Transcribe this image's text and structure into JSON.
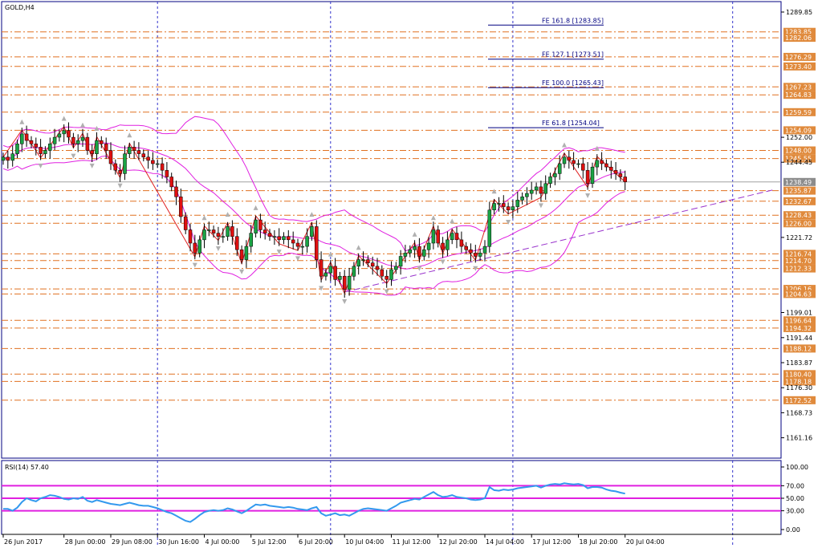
{
  "chart_data": {
    "type": "candlestick",
    "symbol_label": "GOLD,H4",
    "price_axis": {
      "min": 1155,
      "max": 1293,
      "ticks": [
        "1289.85",
        "1252.00",
        "1244.45",
        "1221.72",
        "1199.01",
        "1191.44",
        "1183.87",
        "1176.30",
        "1168.73",
        "1161.16"
      ]
    },
    "time_labels": [
      {
        "label": "26 Jun 2017",
        "i": 0
      },
      {
        "label": "28 Jun 00:00",
        "i": 13
      },
      {
        "label": "29 Jun 08:00",
        "i": 23
      },
      {
        "label": "30 Jun 16:00",
        "i": 33
      },
      {
        "label": "4 Jul 00:00",
        "i": 43
      },
      {
        "label": "5 Jul 12:00",
        "i": 53
      },
      {
        "label": "6 Jul 20:00",
        "i": 63
      },
      {
        "label": "10 Jul 04:00",
        "i": 73
      },
      {
        "label": "11 Jul 12:00",
        "i": 83
      },
      {
        "label": "12 Jul 20:00",
        "i": 93
      },
      {
        "label": "14 Jul 04:00",
        "i": 103
      },
      {
        "label": "17 Jul 12:00",
        "i": 113
      },
      {
        "label": "18 Jul 20:00",
        "i": 123
      },
      {
        "label": "20 Jul 04:00",
        "i": 133
      }
    ],
    "period_separators_i": [
      33,
      70,
      109,
      156
    ],
    "current_price": {
      "value": 1238.49,
      "label": "1238.49"
    },
    "horizontal_levels": [
      {
        "value": 1283.85,
        "label": "1283.85"
      },
      {
        "value": 1282.06,
        "label": "1282.06"
      },
      {
        "value": 1276.29,
        "label": "1276.29"
      },
      {
        "value": 1273.4,
        "label": "1273.40"
      },
      {
        "value": 1267.23,
        "label": "1267.23"
      },
      {
        "value": 1264.83,
        "label": "1264.83"
      },
      {
        "value": 1259.59,
        "label": "1259.59"
      },
      {
        "value": 1254.09,
        "label": "1254.09"
      },
      {
        "value": 1248.0,
        "label": "1248.00"
      },
      {
        "value": 1245.55,
        "label": "1245.55"
      },
      {
        "value": 1235.87,
        "label": "1235.87"
      },
      {
        "value": 1232.67,
        "label": "1232.67"
      },
      {
        "value": 1228.43,
        "label": "1228.43"
      },
      {
        "value": 1226.0,
        "label": "1226.00"
      },
      {
        "value": 1216.74,
        "label": "1216.74"
      },
      {
        "value": 1214.7,
        "label": "1214.70"
      },
      {
        "value": 1212.33,
        "label": "1212.33"
      },
      {
        "value": 1206.16,
        "label": "1206.16"
      },
      {
        "value": 1204.63,
        "label": "1204.63"
      },
      {
        "value": 1196.64,
        "label": "1196.64"
      },
      {
        "value": 1194.32,
        "label": "1194.32"
      },
      {
        "value": 1188.12,
        "label": "1188.12"
      },
      {
        "value": 1180.4,
        "label": "1180.40"
      },
      {
        "value": 1178.18,
        "label": "1178.18"
      },
      {
        "value": 1172.52,
        "label": "1172.52"
      }
    ],
    "fibo_levels": [
      {
        "label": "FE 161.8 [1283.85]",
        "value": 1285.9
      },
      {
        "label": "FE 127.1 [1273.51]",
        "value": 1275.6
      },
      {
        "label": "FE 100.0 [1265.43]",
        "value": 1267.0
      },
      {
        "label": "FE 61.8 [1254.04]",
        "value": 1254.9
      }
    ],
    "trendline": {
      "i1": 73,
      "v1": 1205.2,
      "i2": 165,
      "v2": 1236.2
    },
    "closes": [
      1246,
      1245,
      1247,
      1250,
      1253,
      1251,
      1250,
      1249,
      1247,
      1248,
      1250,
      1252,
      1253,
      1254,
      1252,
      1250,
      1251,
      1252,
      1248,
      1247,
      1251,
      1250,
      1248,
      1244,
      1242,
      1241,
      1247,
      1249,
      1248,
      1247,
      1246,
      1245,
      1244,
      1244,
      1242,
      1240,
      1237,
      1234,
      1228,
      1224,
      1220,
      1217,
      1221,
      1224,
      1224,
      1223,
      1222,
      1222,
      1225,
      1222,
      1218,
      1215,
      1219,
      1223,
      1227,
      1224,
      1223,
      1222,
      1222,
      1221,
      1222,
      1221,
      1220,
      1219,
      1219,
      1222,
      1225,
      1215,
      1210,
      1211,
      1213,
      1209,
      1210,
      1206,
      1210,
      1213,
      1215,
      1215,
      1214,
      1213,
      1212,
      1210,
      1209,
      1212,
      1213,
      1216,
      1217,
      1218,
      1219,
      1216,
      1218,
      1220,
      1224,
      1220,
      1218,
      1221,
      1223,
      1221,
      1219,
      1218,
      1217,
      1216,
      1217,
      1219,
      1230,
      1232,
      1232,
      1231,
      1230,
      1231,
      1233,
      1234,
      1235,
      1236,
      1237,
      1235,
      1238,
      1240,
      1241,
      1244,
      1246,
      1245,
      1244,
      1244,
      1242,
      1238,
      1243,
      1245,
      1244,
      1243,
      1242,
      1241,
      1240,
      1238.5
    ],
    "rsi": {
      "label": "RSI(14) 57.40",
      "scale_labels": [
        "100.00",
        "70.00",
        "50.00",
        "30.00",
        "0.00"
      ],
      "levels": [
        70,
        50,
        30
      ],
      "values": [
        33,
        33,
        30,
        35,
        44,
        50,
        47,
        45,
        50,
        52,
        55,
        54,
        52,
        49,
        48,
        50,
        49,
        52,
        46,
        44,
        47,
        45,
        43,
        41,
        40,
        39,
        41,
        43,
        41,
        39,
        38,
        38,
        36,
        34,
        31,
        28,
        26,
        22,
        18,
        14,
        12,
        17,
        23,
        28,
        30,
        31,
        30,
        31,
        34,
        32,
        29,
        26,
        30,
        35,
        40,
        39,
        40,
        38,
        37,
        36,
        35,
        36,
        35,
        33,
        32,
        31,
        34,
        36,
        26,
        22,
        24,
        26,
        23,
        24,
        22,
        26,
        30,
        33,
        34,
        33,
        32,
        31,
        30,
        34,
        38,
        43,
        45,
        47,
        49,
        48,
        52,
        56,
        60,
        55,
        52,
        53,
        55,
        52,
        51,
        50,
        48,
        47,
        48,
        50,
        68,
        63,
        62,
        64,
        63,
        64,
        66,
        67,
        68,
        69,
        70,
        67,
        70,
        72,
        73,
        72,
        74,
        73,
        72,
        73,
        71,
        66,
        68,
        68,
        67,
        64,
        62,
        61,
        59,
        57.4
      ]
    }
  }
}
